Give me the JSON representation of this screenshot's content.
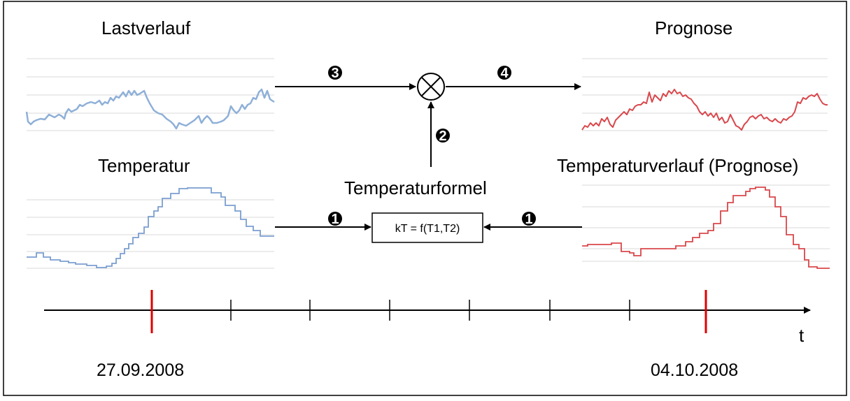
{
  "titles": {
    "load": "Lastverlauf",
    "forecast": "Prognose",
    "temperature": "Temperatur",
    "temperature_forecast": "Temperaturverlauf (Prognose)",
    "temperature_formula": "Temperaturformel"
  },
  "formula_box": "kT = f(T1,T2)",
  "step_markers": {
    "step1": "1",
    "step2": "2",
    "step3": "3",
    "step4": "4"
  },
  "timeline": {
    "axis_label": "t",
    "start_date": "27.09.2008",
    "end_date": "04.10.2008"
  },
  "colors": {
    "load_curve": "#8fb0d8",
    "temperature_curve": "#7b9fd0",
    "forecast_curve": "#d9474b",
    "highlight_tick": "#e00000",
    "gridline": "#d9d9d9"
  }
}
